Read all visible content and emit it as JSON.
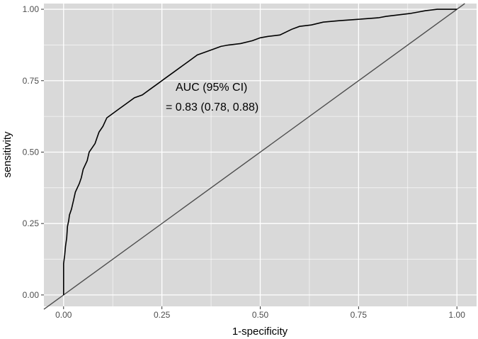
{
  "chart_data": {
    "type": "line",
    "title": "",
    "xlabel": "1-specificity",
    "ylabel": "sensitivity",
    "xlim": [
      -0.05,
      1.05
    ],
    "ylim": [
      -0.04,
      1.02
    ],
    "x_ticks": [
      "0.00",
      "0.25",
      "0.50",
      "0.75",
      "1.00"
    ],
    "y_ticks": [
      "0.00",
      "0.25",
      "0.50",
      "0.75",
      "1.00"
    ],
    "grid": true,
    "legend": "none",
    "colors": {
      "panel": "#d9d9d9",
      "grid": "#ffffff",
      "curve": "#000000",
      "diagonal": "#4d4d4d"
    },
    "annotations": [
      "AUC (95% CI)",
      "= 0.83 (0.78, 0.88)"
    ],
    "series": [
      {
        "x": [
          0.0,
          0.0,
          0.003,
          0.005,
          0.008,
          0.01,
          0.013,
          0.015,
          0.02,
          0.025,
          0.03,
          0.04,
          0.045,
          0.05,
          0.06,
          0.065,
          0.07,
          0.08,
          0.085,
          0.09,
          0.1,
          0.11,
          0.12,
          0.14,
          0.16,
          0.18,
          0.2,
          0.22,
          0.24,
          0.26,
          0.28,
          0.3,
          0.32,
          0.34,
          0.36,
          0.38,
          0.4,
          0.42,
          0.45,
          0.48,
          0.5,
          0.52,
          0.55,
          0.58,
          0.6,
          0.63,
          0.66,
          0.7,
          0.75,
          0.8,
          0.82,
          0.85,
          0.88,
          0.9,
          0.92,
          0.95,
          0.97,
          1.0,
          1.0
        ],
        "y": [
          0.0,
          0.11,
          0.14,
          0.17,
          0.2,
          0.24,
          0.26,
          0.28,
          0.3,
          0.33,
          0.36,
          0.39,
          0.41,
          0.44,
          0.47,
          0.5,
          0.51,
          0.53,
          0.55,
          0.57,
          0.59,
          0.62,
          0.63,
          0.65,
          0.67,
          0.69,
          0.7,
          0.72,
          0.74,
          0.76,
          0.78,
          0.8,
          0.82,
          0.84,
          0.85,
          0.86,
          0.87,
          0.875,
          0.88,
          0.89,
          0.9,
          0.905,
          0.91,
          0.93,
          0.94,
          0.945,
          0.955,
          0.96,
          0.965,
          0.97,
          0.975,
          0.98,
          0.985,
          0.99,
          0.995,
          1.0,
          1.0,
          1.0,
          1.0
        ]
      }
    ]
  }
}
